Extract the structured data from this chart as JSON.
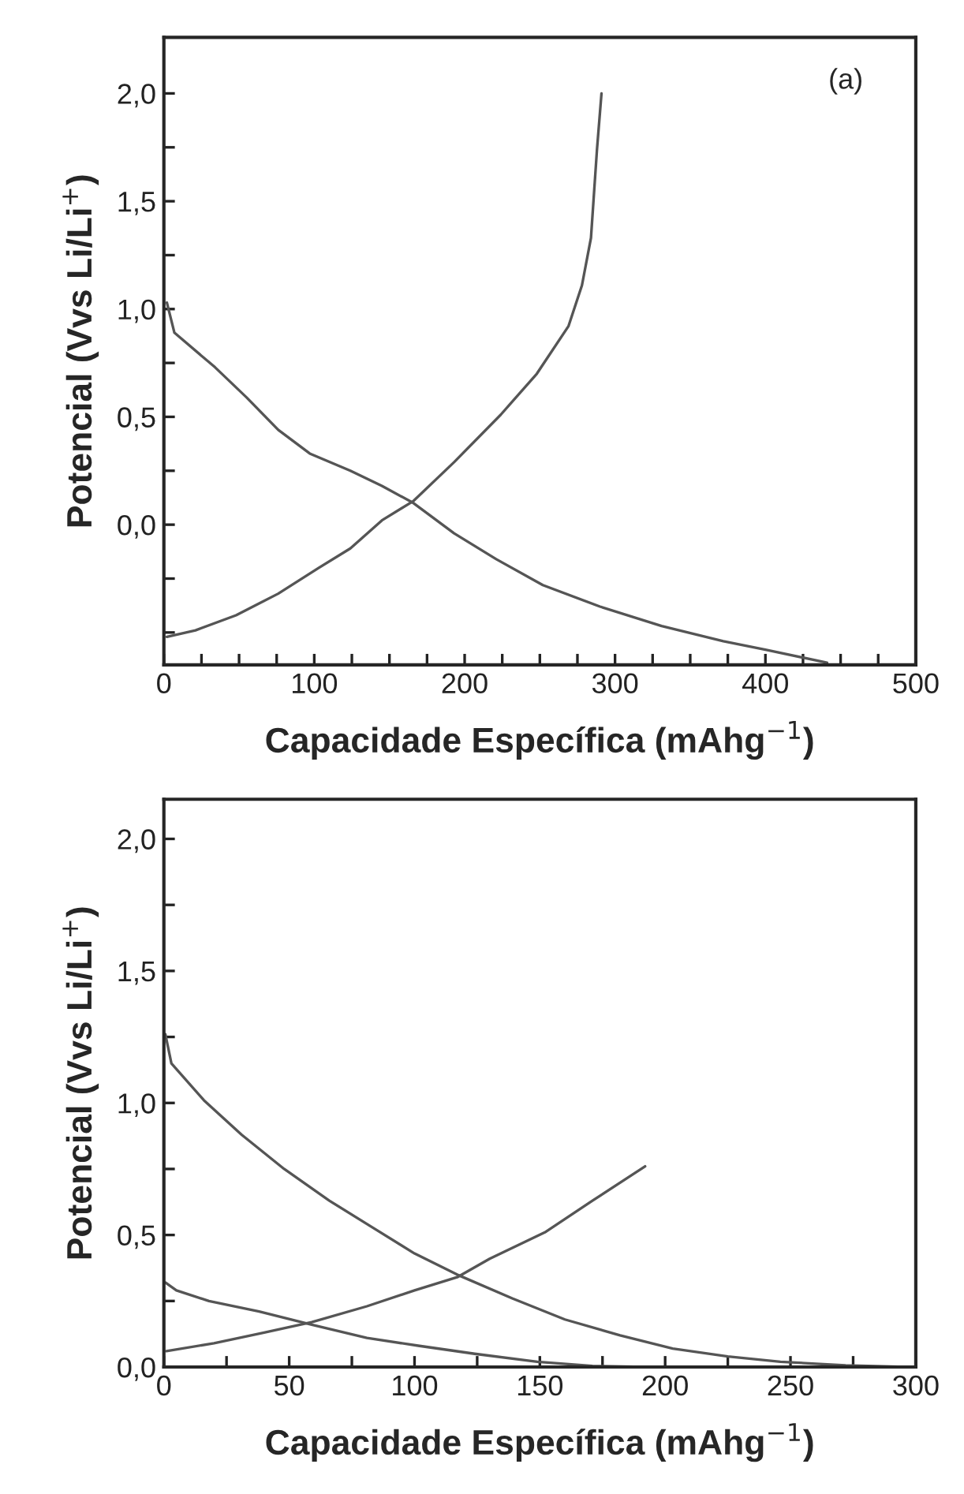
{
  "chart_data": [
    {
      "type": "line",
      "annotations": [
        "(a)"
      ],
      "xlabel": "Capacidade Específica (mAhg$^{−1}$)",
      "ylabel": "Potencial (Vvs Li/Li$^{+}$)",
      "xlim": [
        0,
        500
      ],
      "ylim": [
        -0.65,
        2.26
      ],
      "xticks": [
        0,
        {
          "value": 25,
          "label": null
        },
        100,
        {
          "value": 50,
          "label": null
        },
        {
          "value": 75,
          "label": null
        },
        {
          "value": 125,
          "label": null
        },
        {
          "value": 150,
          "label": null
        },
        {
          "value": 175,
          "label": null
        },
        200,
        {
          "value": 225,
          "label": null
        },
        {
          "value": 250,
          "label": null
        },
        {
          "value": 275,
          "label": null
        },
        300,
        {
          "value": 325,
          "label": null
        },
        {
          "value": 350,
          "label": null
        },
        {
          "value": 375,
          "label": null
        },
        400,
        {
          "value": 425,
          "label": null
        },
        {
          "value": 450,
          "label": null
        },
        {
          "value": 475,
          "label": null
        },
        500
      ],
      "yticks": [
        {
          "value": -0.5,
          "label": null
        },
        {
          "value": -0.25,
          "label": null
        },
        {
          "value": 0,
          "label": "0,0"
        },
        {
          "value": 0.25,
          "label": null
        },
        {
          "value": 0.5,
          "label": "0,5"
        },
        {
          "value": 0.75,
          "label": null
        },
        {
          "value": 1.0,
          "label": "1,0"
        },
        {
          "value": 1.25,
          "label": null
        },
        {
          "value": 1.5,
          "label": "1,5"
        },
        {
          "value": 1.75,
          "label": null
        },
        {
          "value": 2.0,
          "label": "2,0"
        }
      ],
      "series": [
        {
          "color": "#555555",
          "x": [
            2,
            21,
            48,
            76,
            103,
            124,
            145,
            166,
            193,
            224,
            248,
            269,
            278,
            284,
            288,
            291
          ],
          "values": [
            -0.52,
            -0.49,
            -0.42,
            -0.32,
            -0.2,
            -0.11,
            0.02,
            0.11,
            0.29,
            0.51,
            0.7,
            0.92,
            1.11,
            1.33,
            1.74,
            2.0
          ]
        },
        {
          "color": "#555555",
          "x": [
            2,
            7,
            34,
            55,
            76,
            97,
            124,
            145,
            166,
            193,
            221,
            252,
            290,
            331,
            372,
            400,
            441
          ],
          "values": [
            1.03,
            0.89,
            0.73,
            0.59,
            0.44,
            0.33,
            0.25,
            0.18,
            0.1,
            -0.04,
            -0.16,
            -0.28,
            -0.38,
            -0.47,
            -0.54,
            -0.58,
            -0.64
          ]
        }
      ]
    },
    {
      "type": "line",
      "xlabel": "Capacidade Específica (mAhg$^{−1}$)",
      "ylabel": "Potencial (Vvs Li/Li$^{+}$)",
      "xlim": [
        0,
        300
      ],
      "ylim": [
        0,
        2.15
      ],
      "xticks": [
        0,
        {
          "value": 25,
          "label": null
        },
        50,
        {
          "value": 75,
          "label": null
        },
        100,
        {
          "value": 125,
          "label": null
        },
        150,
        {
          "value": 175,
          "label": null
        },
        200,
        {
          "value": 225,
          "label": null
        },
        250,
        {
          "value": 275,
          "label": null
        },
        300
      ],
      "yticks": [
        {
          "value": 0,
          "label": "0,0"
        },
        {
          "value": 0.25,
          "label": null
        },
        {
          "value": 0.5,
          "label": "0,5"
        },
        {
          "value": 0.75,
          "label": null
        },
        {
          "value": 1.0,
          "label": "1,0"
        },
        {
          "value": 1.25,
          "label": null
        },
        {
          "value": 1.5,
          "label": "1,5"
        },
        {
          "value": 1.75,
          "label": null
        },
        {
          "value": 2.0,
          "label": "2,0"
        }
      ],
      "series": [
        {
          "color": "#555555",
          "x": [
            0.6,
            3,
            16,
            31,
            48,
            66,
            83,
            100,
            117,
            139,
            160,
            182,
            203,
            225,
            246,
            272,
            296
          ],
          "values": [
            1.26,
            1.15,
            1.01,
            0.88,
            0.75,
            0.63,
            0.53,
            0.43,
            0.35,
            0.26,
            0.18,
            0.12,
            0.07,
            0.04,
            0.02,
            0.006,
            0
          ]
        },
        {
          "color": "#555555",
          "x": [
            0.6,
            5,
            18,
            38,
            59,
            81,
            102,
            124,
            149,
            171,
            192
          ],
          "values": [
            0.32,
            0.29,
            0.25,
            0.21,
            0.16,
            0.11,
            0.08,
            0.05,
            0.02,
            0.004,
            0
          ]
        },
        {
          "color": "#555555",
          "x": [
            1,
            20,
            40,
            59,
            81,
            100,
            117,
            130,
            152,
            171,
            192
          ],
          "values": [
            0.06,
            0.09,
            0.13,
            0.17,
            0.23,
            0.29,
            0.34,
            0.41,
            0.51,
            0.63,
            0.76
          ]
        }
      ]
    }
  ]
}
